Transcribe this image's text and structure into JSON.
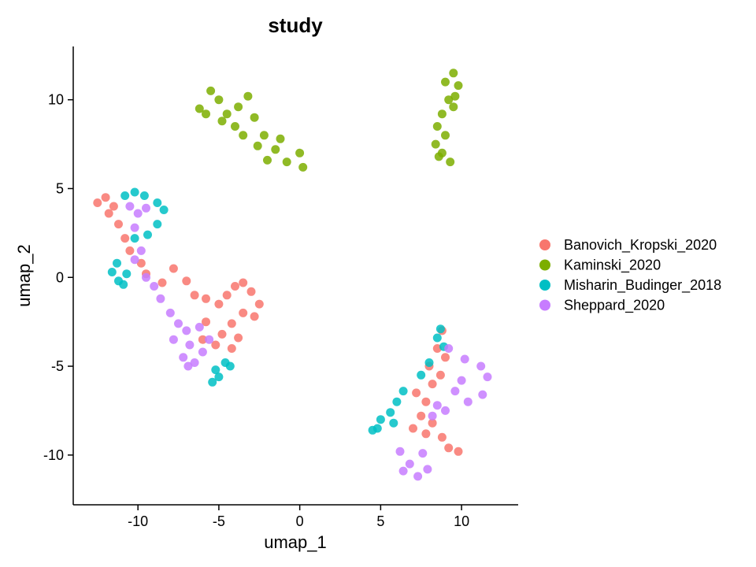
{
  "chart_data": {
    "type": "scatter",
    "title": "study",
    "xlabel": "umap_1",
    "ylabel": "umap_2",
    "xlim": [
      -14,
      13.5
    ],
    "ylim": [
      -12.8,
      13
    ],
    "xticks": [
      -10,
      -5,
      0,
      5,
      10
    ],
    "xtick_labels": [
      "-10",
      "-5",
      "0",
      "5",
      "10"
    ],
    "yticks": [
      -10,
      -5,
      0,
      5,
      10
    ],
    "ytick_labels": [
      "-10",
      "-5",
      "0",
      "5",
      "10"
    ],
    "grid": false,
    "legend_position": "right",
    "series": [
      {
        "name": "Banovich_Kropski_2020",
        "color": "#F8766D",
        "points": [
          [
            -12.5,
            4.2
          ],
          [
            -12.0,
            4.5
          ],
          [
            -11.5,
            4.0
          ],
          [
            -11.8,
            3.6
          ],
          [
            -11.2,
            3.0
          ],
          [
            -10.8,
            2.2
          ],
          [
            -10.5,
            1.5
          ],
          [
            -9.8,
            0.8
          ],
          [
            -9.5,
            0.2
          ],
          [
            -8.5,
            -0.3
          ],
          [
            -7.8,
            0.5
          ],
          [
            -7.0,
            -0.2
          ],
          [
            -6.5,
            -1.0
          ],
          [
            -5.8,
            -1.2
          ],
          [
            -5.0,
            -1.5
          ],
          [
            -4.5,
            -1.0
          ],
          [
            -4.0,
            -0.5
          ],
          [
            -3.5,
            -0.3
          ],
          [
            -3.0,
            -0.8
          ],
          [
            -2.5,
            -1.5
          ],
          [
            -2.8,
            -2.2
          ],
          [
            -3.5,
            -2.0
          ],
          [
            -4.2,
            -2.6
          ],
          [
            -4.8,
            -3.2
          ],
          [
            -5.2,
            -3.8
          ],
          [
            -4.2,
            -4.0
          ],
          [
            -3.8,
            -3.4
          ],
          [
            -5.8,
            -2.5
          ],
          [
            -6.0,
            -3.5
          ],
          [
            8.8,
            -3.0
          ],
          [
            8.5,
            -4.0
          ],
          [
            8.0,
            -5.0
          ],
          [
            8.7,
            -5.5
          ],
          [
            9.0,
            -4.5
          ],
          [
            8.2,
            -6.0
          ],
          [
            7.8,
            -7.0
          ],
          [
            7.5,
            -7.8
          ],
          [
            7.0,
            -8.5
          ],
          [
            7.8,
            -8.8
          ],
          [
            8.2,
            -8.2
          ],
          [
            8.8,
            -9.0
          ],
          [
            9.2,
            -9.6
          ],
          [
            9.8,
            -9.8
          ],
          [
            7.2,
            -6.5
          ]
        ]
      },
      {
        "name": "Kaminski_2020",
        "color": "#7CAE00",
        "points": [
          [
            -6.2,
            9.5
          ],
          [
            -5.5,
            10.5
          ],
          [
            -5.0,
            10.0
          ],
          [
            -4.5,
            9.2
          ],
          [
            -4.0,
            8.5
          ],
          [
            -3.2,
            10.2
          ],
          [
            -2.8,
            9.0
          ],
          [
            -2.2,
            8.0
          ],
          [
            -1.5,
            7.2
          ],
          [
            -0.8,
            6.5
          ],
          [
            0.0,
            7.0
          ],
          [
            0.2,
            6.2
          ],
          [
            -3.5,
            8.0
          ],
          [
            -2.0,
            6.6
          ],
          [
            -4.8,
            8.8
          ],
          [
            -1.2,
            7.8
          ],
          [
            -3.8,
            9.6
          ],
          [
            -5.8,
            9.2
          ],
          [
            -2.6,
            7.4
          ],
          [
            9.0,
            11.0
          ],
          [
            9.5,
            11.5
          ],
          [
            9.8,
            10.8
          ],
          [
            9.2,
            10.0
          ],
          [
            8.8,
            9.2
          ],
          [
            9.5,
            9.6
          ],
          [
            8.5,
            8.5
          ],
          [
            9.0,
            8.0
          ],
          [
            8.4,
            7.5
          ],
          [
            8.8,
            7.0
          ],
          [
            9.3,
            6.5
          ],
          [
            8.6,
            6.8
          ],
          [
            9.6,
            10.2
          ]
        ]
      },
      {
        "name": "Misharin_Budinger_2018",
        "color": "#00BFC4",
        "points": [
          [
            -10.8,
            4.6
          ],
          [
            -10.2,
            4.8
          ],
          [
            -9.6,
            4.6
          ],
          [
            -8.8,
            4.2
          ],
          [
            -8.4,
            3.8
          ],
          [
            -8.8,
            3.0
          ],
          [
            -9.4,
            2.4
          ],
          [
            -10.2,
            2.2
          ],
          [
            -11.3,
            0.8
          ],
          [
            -11.6,
            0.3
          ],
          [
            -11.2,
            -0.2
          ],
          [
            -10.7,
            0.2
          ],
          [
            -10.9,
            -0.4
          ],
          [
            -5.2,
            -5.2
          ],
          [
            -4.6,
            -4.8
          ],
          [
            -5.0,
            -5.6
          ],
          [
            -5.4,
            -5.9
          ],
          [
            -4.3,
            -5.0
          ],
          [
            4.5,
            -8.6
          ],
          [
            5.0,
            -8.0
          ],
          [
            5.6,
            -7.6
          ],
          [
            6.0,
            -7.0
          ],
          [
            6.4,
            -6.4
          ],
          [
            5.8,
            -8.2
          ],
          [
            4.8,
            -8.5
          ],
          [
            8.5,
            -3.4
          ],
          [
            8.9,
            -3.9
          ],
          [
            8.0,
            -4.8
          ],
          [
            7.5,
            -5.5
          ],
          [
            8.7,
            -2.9
          ]
        ]
      },
      {
        "name": "Sheppard_2020",
        "color": "#C77CFF",
        "points": [
          [
            -10.5,
            4.0
          ],
          [
            -10.0,
            3.6
          ],
          [
            -9.5,
            3.9
          ],
          [
            -10.2,
            2.8
          ],
          [
            -9.8,
            1.5
          ],
          [
            -10.2,
            1.0
          ],
          [
            -9.5,
            0.0
          ],
          [
            -9.0,
            -0.5
          ],
          [
            -8.6,
            -1.2
          ],
          [
            -8.0,
            -2.0
          ],
          [
            -7.5,
            -2.6
          ],
          [
            -7.0,
            -3.0
          ],
          [
            -6.8,
            -3.8
          ],
          [
            -7.2,
            -4.5
          ],
          [
            -6.5,
            -4.8
          ],
          [
            -6.0,
            -4.2
          ],
          [
            -5.6,
            -3.5
          ],
          [
            -6.2,
            -2.8
          ],
          [
            -7.8,
            -3.5
          ],
          [
            -6.9,
            -5.0
          ],
          [
            9.2,
            -4.0
          ],
          [
            10.2,
            -4.6
          ],
          [
            11.2,
            -5.0
          ],
          [
            11.6,
            -5.6
          ],
          [
            11.3,
            -6.6
          ],
          [
            10.4,
            -7.0
          ],
          [
            9.6,
            -6.4
          ],
          [
            8.5,
            -7.2
          ],
          [
            8.2,
            -7.8
          ],
          [
            6.2,
            -9.8
          ],
          [
            6.8,
            -10.5
          ],
          [
            7.3,
            -11.2
          ],
          [
            7.9,
            -10.8
          ],
          [
            7.6,
            -9.9
          ],
          [
            6.4,
            -10.9
          ],
          [
            10.0,
            -5.8
          ],
          [
            9.0,
            -7.5
          ]
        ]
      }
    ]
  }
}
